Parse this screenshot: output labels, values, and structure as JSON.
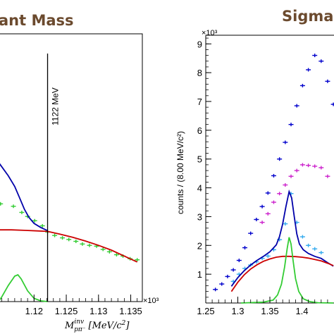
{
  "chart_data": [
    {
      "type": "line",
      "title": "ant Mass",
      "xlabel": "M_{pπ⁻}^{inv} [MeV/c²]",
      "xlabel_parts": {
        "symbol": "M",
        "superscript": "inv",
        "subscript": "pπ⁻",
        "unit": "[MeV/c",
        "unit_power": "2",
        "unit_close": "]"
      },
      "x_exponent_label": "×10³",
      "xlim": [
        1.1145,
        1.1368
      ],
      "ylim": [
        0,
        1
      ],
      "xticks": [
        1.12,
        1.125,
        1.13,
        1.135
      ],
      "xtick_labels": [
        "1.12",
        "1.125",
        "1.13",
        "1.135"
      ],
      "vline": {
        "x": 1.1221,
        "label": "1122 MeV"
      },
      "series": [
        {
          "kind": "points",
          "color": "#33cc33",
          "points": [
            [
              1.1148,
              0.365
            ],
            [
              1.1168,
              0.356
            ],
            [
              1.1181,
              0.333
            ],
            [
              1.119,
              0.318
            ],
            [
              1.1201,
              0.302
            ],
            [
              1.1213,
              0.283
            ],
            [
              1.1221,
              0.26
            ],
            [
              1.1232,
              0.247
            ],
            [
              1.1244,
              0.238
            ],
            [
              1.1254,
              0.232
            ],
            [
              1.1265,
              0.225
            ],
            [
              1.1275,
              0.215
            ],
            [
              1.1286,
              0.21
            ],
            [
              1.1297,
              0.207
            ],
            [
              1.1307,
              0.195
            ],
            [
              1.1317,
              0.186
            ],
            [
              1.1328,
              0.175
            ],
            [
              1.1338,
              0.17
            ],
            [
              1.1349,
              0.16
            ],
            [
              1.136,
              0.156
            ]
          ]
        },
        {
          "kind": "line",
          "color": "#0000aa",
          "points": [
            [
              1.1145,
              0.52
            ],
            [
              1.116,
              0.47
            ],
            [
              1.117,
              0.43
            ],
            [
              1.1178,
              0.385
            ],
            [
              1.1185,
              0.345
            ],
            [
              1.1192,
              0.315
            ],
            [
              1.12,
              0.292
            ],
            [
              1.121,
              0.277
            ],
            [
              1.1221,
              0.265
            ]
          ]
        },
        {
          "kind": "line",
          "color": "#cc0000",
          "points": [
            [
              1.1145,
              0.268
            ],
            [
              1.1165,
              0.268
            ],
            [
              1.1185,
              0.266
            ],
            [
              1.1205,
              0.264
            ],
            [
              1.1221,
              0.262
            ],
            [
              1.124,
              0.252
            ],
            [
              1.126,
              0.24
            ],
            [
              1.128,
              0.226
            ],
            [
              1.13,
              0.21
            ],
            [
              1.132,
              0.192
            ],
            [
              1.134,
              0.17
            ],
            [
              1.136,
              0.148
            ]
          ]
        },
        {
          "kind": "line",
          "color": "#33cc33",
          "points": [
            [
              1.1145,
              0.0
            ],
            [
              1.115,
              0.018
            ],
            [
              1.116,
              0.06
            ],
            [
              1.117,
              0.095
            ],
            [
              1.1175,
              0.1
            ],
            [
              1.118,
              0.085
            ],
            [
              1.119,
              0.04
            ],
            [
              1.12,
              0.012
            ],
            [
              1.121,
              0.003
            ],
            [
              1.1221,
              0.0
            ]
          ]
        }
      ]
    },
    {
      "type": "scatter",
      "title": "Sigma",
      "ylabel": "counts / (8.00 MeV/c²)",
      "y_exponent_label": "×10³",
      "xlim": [
        1.25,
        1.45
      ],
      "ylim": [
        0,
        9.3
      ],
      "xticks": [
        1.25,
        1.3,
        1.35,
        1.4
      ],
      "xtick_labels": [
        "1.25",
        "1.3",
        "1.35",
        "1.4"
      ],
      "yticks": [
        1,
        2,
        3,
        4,
        5,
        6,
        7,
        8,
        9
      ],
      "ytick_labels": [
        "1",
        "2",
        "3",
        "4",
        "5",
        "6",
        "7",
        "8",
        "9"
      ],
      "series": [
        {
          "kind": "points",
          "color": "#0000cc",
          "points": [
            [
              1.265,
              0.47
            ],
            [
              1.275,
              0.66
            ],
            [
              1.284,
              0.92
            ],
            [
              1.293,
              1.15
            ],
            [
              1.302,
              1.48
            ],
            [
              1.311,
              1.92
            ],
            [
              1.32,
              2.42
            ],
            [
              1.329,
              2.9
            ],
            [
              1.338,
              3.35
            ],
            [
              1.347,
              3.82
            ],
            [
              1.356,
              4.42
            ],
            [
              1.365,
              5.0
            ],
            [
              1.374,
              5.58
            ],
            [
              1.383,
              6.2
            ],
            [
              1.392,
              6.85
            ],
            [
              1.401,
              7.55
            ],
            [
              1.41,
              8.1
            ],
            [
              1.42,
              8.6
            ],
            [
              1.43,
              8.4
            ],
            [
              1.44,
              7.7
            ],
            [
              1.449,
              6.9
            ]
          ]
        },
        {
          "kind": "points",
          "color": "#cc22cc",
          "points": [
            [
              1.338,
              2.8
            ],
            [
              1.347,
              3.1
            ],
            [
              1.356,
              3.5
            ],
            [
              1.365,
              3.8
            ],
            [
              1.374,
              4.1
            ],
            [
              1.383,
              4.4
            ],
            [
              1.392,
              4.6
            ],
            [
              1.401,
              4.8
            ],
            [
              1.41,
              4.78
            ],
            [
              1.42,
              4.75
            ],
            [
              1.43,
              4.7
            ],
            [
              1.44,
              4.4
            ]
          ]
        },
        {
          "kind": "points",
          "color": "#33aaee",
          "points": [
            [
              1.293,
              0.75
            ],
            [
              1.302,
              1.0
            ],
            [
              1.311,
              1.2
            ],
            [
              1.32,
              1.32
            ],
            [
              1.329,
              1.43
            ],
            [
              1.338,
              1.55
            ],
            [
              1.347,
              1.63
            ],
            [
              1.356,
              1.85
            ],
            [
              1.365,
              2.2
            ],
            [
              1.374,
              2.75
            ],
            [
              1.383,
              3.8
            ],
            [
              1.392,
              2.8
            ],
            [
              1.401,
              2.3
            ],
            [
              1.41,
              2.0
            ],
            [
              1.42,
              1.88
            ],
            [
              1.43,
              1.75
            ]
          ]
        },
        {
          "kind": "line",
          "color": "#0000aa",
          "points": [
            [
              1.29,
              0.58
            ],
            [
              1.3,
              0.88
            ],
            [
              1.31,
              1.12
            ],
            [
              1.32,
              1.32
            ],
            [
              1.33,
              1.48
            ],
            [
              1.34,
              1.62
            ],
            [
              1.35,
              1.78
            ],
            [
              1.36,
              2.02
            ],
            [
              1.365,
              2.3
            ],
            [
              1.37,
              2.75
            ],
            [
              1.375,
              3.35
            ],
            [
              1.38,
              3.87
            ],
            [
              1.384,
              3.65
            ],
            [
              1.388,
              3.0
            ],
            [
              1.392,
              2.4
            ],
            [
              1.396,
              2.05
            ],
            [
              1.402,
              1.85
            ],
            [
              1.41,
              1.72
            ],
            [
              1.42,
              1.62
            ],
            [
              1.43,
              1.55
            ],
            [
              1.44,
              1.4
            ],
            [
              1.449,
              1.28
            ]
          ]
        },
        {
          "kind": "line",
          "color": "#cc0000",
          "points": [
            [
              1.29,
              0.4
            ],
            [
              1.3,
              0.72
            ],
            [
              1.31,
              0.98
            ],
            [
              1.32,
              1.18
            ],
            [
              1.33,
              1.33
            ],
            [
              1.34,
              1.45
            ],
            [
              1.35,
              1.53
            ],
            [
              1.36,
              1.59
            ],
            [
              1.37,
              1.62
            ],
            [
              1.38,
              1.62
            ],
            [
              1.39,
              1.61
            ],
            [
              1.4,
              1.59
            ],
            [
              1.41,
              1.56
            ],
            [
              1.42,
              1.51
            ],
            [
              1.43,
              1.46
            ],
            [
              1.44,
              1.38
            ],
            [
              1.449,
              1.3
            ]
          ]
        },
        {
          "kind": "line",
          "color": "#33cc33",
          "points": [
            [
              1.305,
              0.0
            ],
            [
              1.34,
              0.03
            ],
            [
              1.355,
              0.1
            ],
            [
              1.362,
              0.28
            ],
            [
              1.368,
              0.65
            ],
            [
              1.373,
              1.25
            ],
            [
              1.377,
              1.9
            ],
            [
              1.38,
              2.28
            ],
            [
              1.383,
              2.05
            ],
            [
              1.386,
              1.5
            ],
            [
              1.39,
              0.85
            ],
            [
              1.395,
              0.4
            ],
            [
              1.402,
              0.15
            ],
            [
              1.412,
              0.05
            ],
            [
              1.425,
              0.01
            ],
            [
              1.449,
              0.0
            ]
          ]
        }
      ]
    }
  ]
}
